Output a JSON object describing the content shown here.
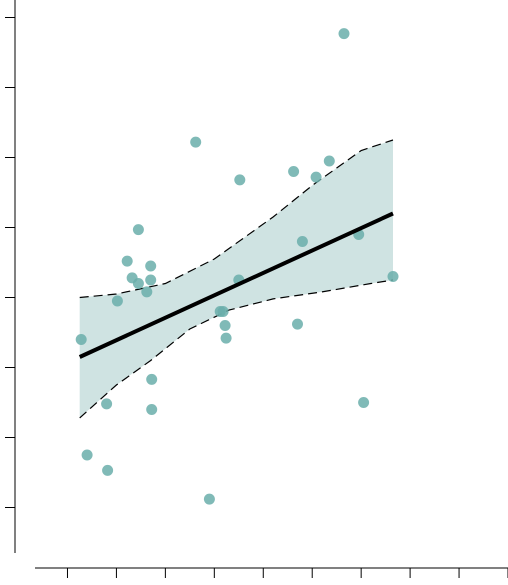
{
  "chart_data": {
    "type": "scatter",
    "title": "",
    "xlabel": "",
    "ylabel": "",
    "xlim": [
      -0.5,
      9.0
    ],
    "ylim": [
      -0.75,
      7.25
    ],
    "x_ticks": [
      0,
      1,
      2,
      3,
      4,
      5,
      6,
      7,
      8,
      9
    ],
    "y_ticks": [
      0,
      1,
      2,
      3,
      4,
      5,
      6,
      7
    ],
    "tick_labels_shown": false,
    "grid": false,
    "colors": {
      "points": "#6aaeaa",
      "band": "#cfe3e2",
      "fit_line": "#000000",
      "band_edge": "#000000",
      "axis": "#000000"
    },
    "points": [
      {
        "x": 0.4,
        "y": 0.75
      },
      {
        "x": 0.28,
        "y": 2.4
      },
      {
        "x": 0.82,
        "y": 0.53
      },
      {
        "x": 0.8,
        "y": 1.48
      },
      {
        "x": 1.02,
        "y": 2.95
      },
      {
        "x": 1.22,
        "y": 3.52
      },
      {
        "x": 1.32,
        "y": 3.28
      },
      {
        "x": 1.45,
        "y": 3.2
      },
      {
        "x": 1.45,
        "y": 3.97
      },
      {
        "x": 1.62,
        "y": 3.08
      },
      {
        "x": 1.7,
        "y": 3.45
      },
      {
        "x": 1.7,
        "y": 3.25
      },
      {
        "x": 1.72,
        "y": 1.83
      },
      {
        "x": 1.72,
        "y": 1.4
      },
      {
        "x": 2.62,
        "y": 5.22
      },
      {
        "x": 2.9,
        "y": 0.12
      },
      {
        "x": 3.12,
        "y": 2.8
      },
      {
        "x": 3.18,
        "y": 2.8
      },
      {
        "x": 3.22,
        "y": 2.6
      },
      {
        "x": 3.24,
        "y": 2.42
      },
      {
        "x": 3.5,
        "y": 3.25
      },
      {
        "x": 3.52,
        "y": 4.68
      },
      {
        "x": 4.62,
        "y": 4.8
      },
      {
        "x": 4.7,
        "y": 2.62
      },
      {
        "x": 4.8,
        "y": 3.8
      },
      {
        "x": 5.08,
        "y": 4.72
      },
      {
        "x": 5.35,
        "y": 4.95
      },
      {
        "x": 5.65,
        "y": 6.77
      },
      {
        "x": 5.95,
        "y": 3.9
      },
      {
        "x": 6.05,
        "y": 1.5
      },
      {
        "x": 6.65,
        "y": 3.3
      }
    ],
    "fit": {
      "x_start": 0.25,
      "x_end": 6.65,
      "y_start": 2.15,
      "y_end": 4.2
    },
    "band_upper": [
      {
        "x": 0.25,
        "y": 3.0
      },
      {
        "x": 1.0,
        "y": 3.05
      },
      {
        "x": 2.0,
        "y": 3.2
      },
      {
        "x": 3.0,
        "y": 3.55
      },
      {
        "x": 3.6,
        "y": 3.85
      },
      {
        "x": 4.2,
        "y": 4.15
      },
      {
        "x": 5.0,
        "y": 4.6
      },
      {
        "x": 6.0,
        "y": 5.1
      },
      {
        "x": 6.65,
        "y": 5.25
      }
    ],
    "band_lower": [
      {
        "x": 0.25,
        "y": 1.28
      },
      {
        "x": 1.0,
        "y": 1.75
      },
      {
        "x": 1.7,
        "y": 2.1
      },
      {
        "x": 2.5,
        "y": 2.55
      },
      {
        "x": 3.3,
        "y": 2.82
      },
      {
        "x": 4.2,
        "y": 2.98
      },
      {
        "x": 5.2,
        "y": 3.08
      },
      {
        "x": 6.2,
        "y": 3.2
      },
      {
        "x": 6.65,
        "y": 3.25
      }
    ]
  }
}
